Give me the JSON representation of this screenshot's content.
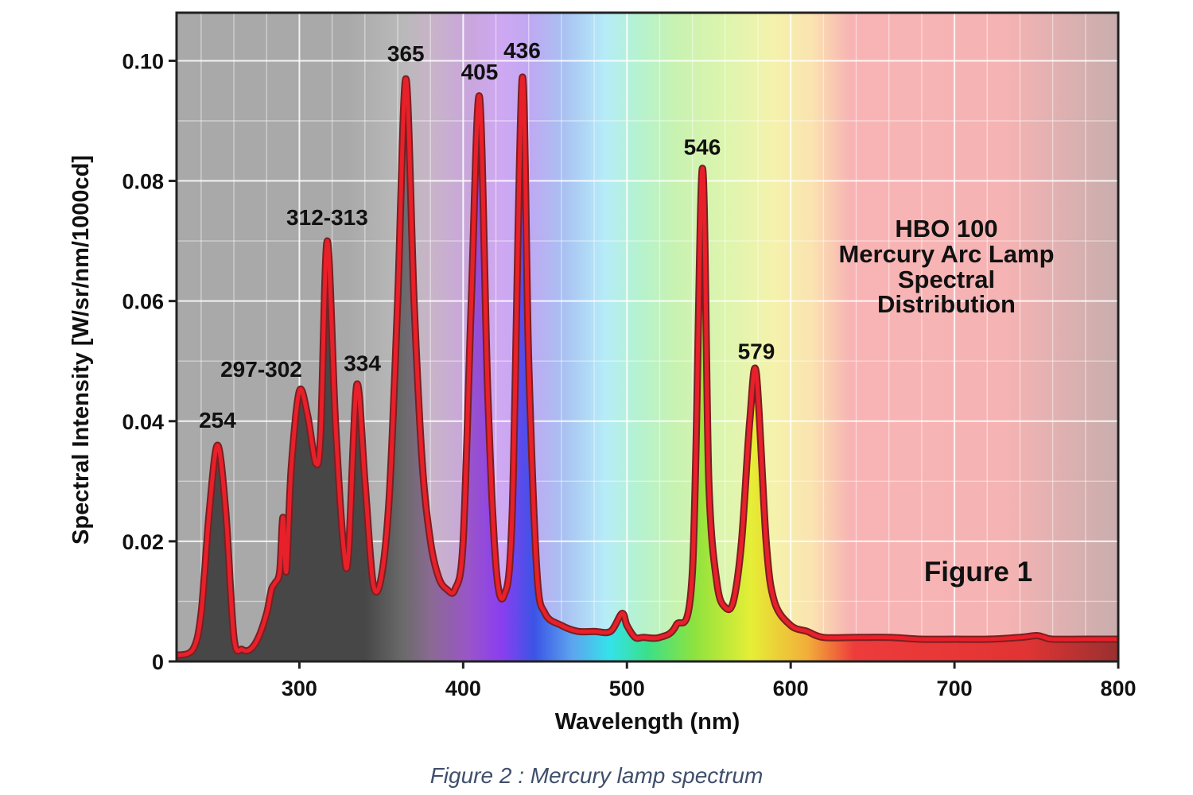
{
  "chart_data": {
    "type": "line",
    "title": "",
    "annotation": [
      "HBO 100",
      "Mercury Arc Lamp",
      "Spectral",
      "Distribution"
    ],
    "figure_label": "Figure 1",
    "xlabel": "Wavelength (nm)",
    "ylabel": "Spectral Intensity [W/sr/nm/1000cd]",
    "xlim": [
      225,
      800
    ],
    "ylim": [
      0,
      0.108
    ],
    "x_ticks": [
      300,
      400,
      500,
      600,
      700,
      800
    ],
    "y_ticks": [
      {
        "value": 0,
        "label": "0"
      },
      {
        "value": 0.02,
        "label": "0.02"
      },
      {
        "value": 0.04,
        "label": "0.04"
      },
      {
        "value": 0.06,
        "label": "0.06"
      },
      {
        "value": 0.08,
        "label": "0.08"
      },
      {
        "value": 0.1,
        "label": "0.10"
      }
    ],
    "grid": true,
    "line_color": "#e8202a",
    "series": [
      {
        "x": [
          225,
          235,
          240,
          245,
          250,
          255,
          260,
          265,
          270,
          275,
          280,
          283,
          285,
          288,
          290,
          292,
          295,
          300,
          305,
          310,
          313,
          317,
          322,
          327,
          330,
          335,
          340,
          345,
          350,
          355,
          360,
          365,
          370,
          375,
          380,
          385,
          390,
          395,
          400,
          405,
          410,
          415,
          420,
          425,
          430,
          436,
          440,
          445,
          450,
          460,
          470,
          480,
          490,
          497,
          500,
          505,
          510,
          520,
          530,
          540,
          546,
          550,
          555,
          560,
          565,
          570,
          575,
          579,
          585,
          590,
          600,
          610,
          620,
          640,
          660,
          680,
          700,
          720,
          740,
          750,
          755,
          760,
          780,
          800
        ],
        "y": [
          0.001,
          0.002,
          0.008,
          0.025,
          0.036,
          0.025,
          0.004,
          0.002,
          0.002,
          0.004,
          0.008,
          0.012,
          0.013,
          0.015,
          0.024,
          0.015,
          0.032,
          0.045,
          0.041,
          0.033,
          0.038,
          0.07,
          0.04,
          0.019,
          0.018,
          0.046,
          0.03,
          0.013,
          0.014,
          0.028,
          0.06,
          0.097,
          0.06,
          0.033,
          0.02,
          0.014,
          0.012,
          0.012,
          0.02,
          0.06,
          0.094,
          0.045,
          0.016,
          0.011,
          0.025,
          0.097,
          0.05,
          0.015,
          0.008,
          0.006,
          0.005,
          0.005,
          0.005,
          0.008,
          0.006,
          0.004,
          0.004,
          0.004,
          0.006,
          0.015,
          0.082,
          0.03,
          0.013,
          0.009,
          0.01,
          0.02,
          0.04,
          0.048,
          0.02,
          0.01,
          0.006,
          0.005,
          0.004,
          0.004,
          0.004,
          0.0037,
          0.0037,
          0.0037,
          0.004,
          0.0043,
          0.004,
          0.0037,
          0.0037,
          0.0037
        ]
      }
    ],
    "peak_labels": [
      {
        "text": "254",
        "x": 254
      },
      {
        "text": "297-302",
        "x": 297
      },
      {
        "text": "312-313",
        "x": 312
      },
      {
        "text": "334",
        "x": 334
      },
      {
        "text": "365",
        "x": 365
      },
      {
        "text": "405",
        "x": 405
      },
      {
        "text": "436",
        "x": 436
      },
      {
        "text": "546",
        "x": 546
      },
      {
        "text": "579",
        "x": 579
      }
    ]
  },
  "caption": "Figure 2 : Mercury lamp spectrum"
}
